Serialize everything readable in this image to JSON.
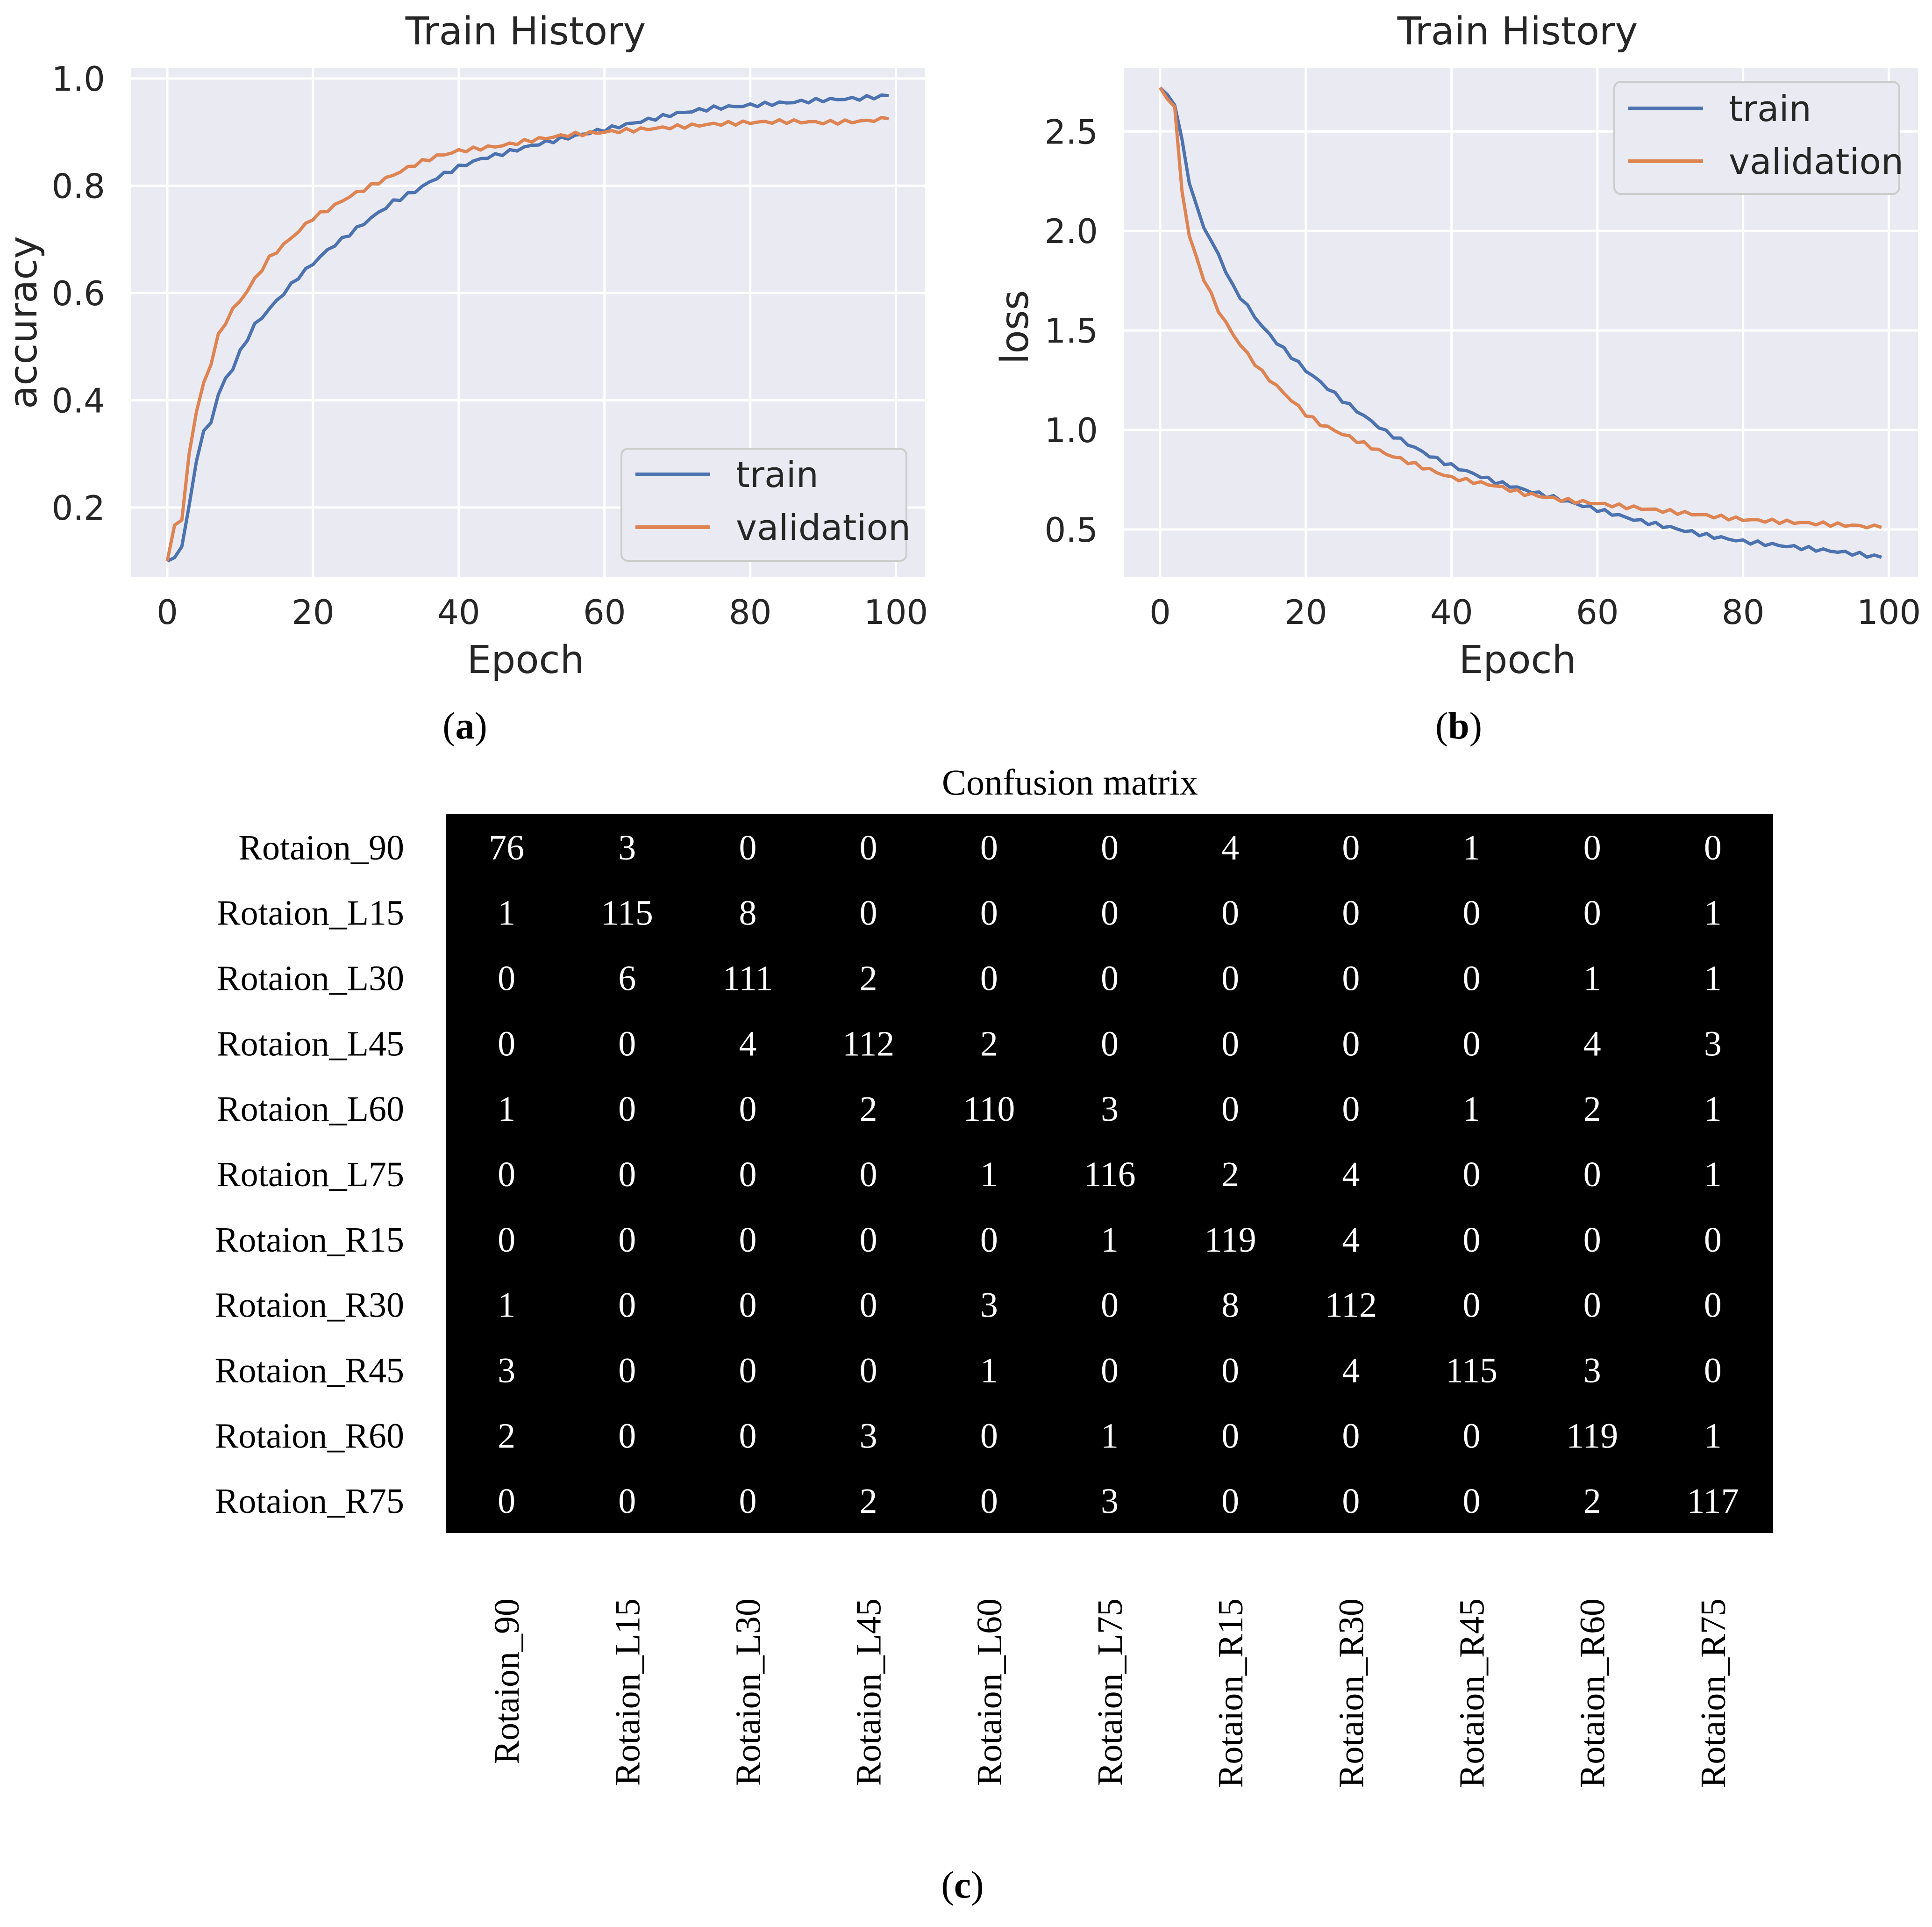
{
  "colors": {
    "plot_bg": "#EAEAF2",
    "grid": "#FFFFFF",
    "train": "#4C72B0",
    "validation": "#DD8452",
    "matrix_bg": "#000000",
    "matrix_text": "#FFFFFF"
  },
  "chart_data": [
    {
      "type": "line",
      "panel_label": "a",
      "title": "Train History",
      "xlabel": "Epoch",
      "ylabel": "accuracy",
      "xlim": [
        -5,
        104
      ],
      "ylim": [
        0.07,
        1.02
      ],
      "xticks": [
        0,
        20,
        40,
        60,
        80,
        100
      ],
      "yticks": [
        0.2,
        0.4,
        0.6,
        0.8,
        1.0
      ],
      "ytick_labels": [
        "0.2",
        "0.4",
        "0.6",
        "0.8",
        "1.0"
      ],
      "grid": true,
      "legend_position": "lower-right",
      "x_keypoints": [
        0,
        1,
        2,
        3,
        4,
        5,
        6,
        7,
        8,
        9,
        10,
        12,
        14,
        16,
        18,
        20,
        22,
        25,
        28,
        31,
        34,
        37,
        40,
        43,
        46,
        50,
        55,
        60,
        65,
        70,
        75,
        80,
        85,
        90,
        95,
        99
      ],
      "series": [
        {
          "name": "train",
          "values": [
            0.1,
            0.105,
            0.13,
            0.2,
            0.29,
            0.34,
            0.36,
            0.41,
            0.44,
            0.46,
            0.49,
            0.54,
            0.57,
            0.6,
            0.63,
            0.655,
            0.68,
            0.71,
            0.74,
            0.77,
            0.79,
            0.815,
            0.835,
            0.85,
            0.86,
            0.875,
            0.89,
            0.905,
            0.92,
            0.935,
            0.945,
            0.95,
            0.955,
            0.96,
            0.963,
            0.968
          ]
        },
        {
          "name": "validation",
          "values": [
            0.1,
            0.17,
            0.175,
            0.3,
            0.38,
            0.43,
            0.47,
            0.52,
            0.545,
            0.57,
            0.585,
            0.625,
            0.665,
            0.69,
            0.715,
            0.74,
            0.755,
            0.78,
            0.8,
            0.82,
            0.84,
            0.855,
            0.865,
            0.87,
            0.875,
            0.885,
            0.895,
            0.9,
            0.905,
            0.91,
            0.915,
            0.918,
            0.92,
            0.918,
            0.92,
            0.925
          ]
        }
      ]
    },
    {
      "type": "line",
      "panel_label": "b",
      "title": "Train History",
      "xlabel": "Epoch",
      "ylabel": "loss",
      "xlim": [
        -5,
        104
      ],
      "ylim": [
        0.26,
        2.82
      ],
      "xticks": [
        0,
        20,
        40,
        60,
        80,
        100
      ],
      "yticks": [
        0.5,
        1.0,
        1.5,
        2.0,
        2.5
      ],
      "ytick_labels": [
        "0.5",
        "1.0",
        "1.5",
        "2.0",
        "2.5"
      ],
      "grid": true,
      "legend_position": "upper-right",
      "x_keypoints": [
        0,
        1,
        2,
        3,
        4,
        5,
        6,
        8,
        10,
        12,
        14,
        16,
        18,
        20,
        22,
        25,
        28,
        31,
        34,
        37,
        40,
        43,
        46,
        50,
        55,
        60,
        65,
        70,
        75,
        80,
        85,
        90,
        95,
        99
      ],
      "series": [
        {
          "name": "train",
          "values": [
            2.72,
            2.68,
            2.64,
            2.45,
            2.25,
            2.12,
            2.02,
            1.88,
            1.72,
            1.62,
            1.52,
            1.44,
            1.37,
            1.3,
            1.24,
            1.15,
            1.07,
            0.99,
            0.93,
            0.87,
            0.82,
            0.78,
            0.74,
            0.7,
            0.65,
            0.6,
            0.55,
            0.51,
            0.47,
            0.44,
            0.42,
            0.4,
            0.38,
            0.36
          ]
        },
        {
          "name": "validation",
          "values": [
            2.72,
            2.67,
            2.62,
            2.2,
            1.98,
            1.86,
            1.76,
            1.6,
            1.48,
            1.38,
            1.29,
            1.22,
            1.15,
            1.08,
            1.03,
            0.98,
            0.93,
            0.88,
            0.84,
            0.8,
            0.76,
            0.74,
            0.72,
            0.68,
            0.65,
            0.63,
            0.61,
            0.59,
            0.57,
            0.55,
            0.54,
            0.53,
            0.52,
            0.51
          ]
        }
      ]
    },
    {
      "type": "heatmap",
      "panel_label": "c",
      "title": "Confusion matrix",
      "row_labels": [
        "Rotaion_90",
        "Rotaion_L15",
        "Rotaion_L30",
        "Rotaion_L45",
        "Rotaion_L60",
        "Rotaion_L75",
        "Rotaion_R15",
        "Rotaion_R30",
        "Rotaion_R45",
        "Rotaion_R60",
        "Rotaion_R75"
      ],
      "column_labels": [
        "Rotaion_90",
        "Rotaion_L15",
        "Rotaion_L30",
        "Rotaion_L45",
        "Rotaion_L60",
        "Rotaion_L75",
        "Rotaion_R15",
        "Rotaion_R30",
        "Rotaion_R45",
        "Rotaion_R60",
        "Rotaion_R75"
      ],
      "matrix": [
        [
          76,
          3,
          0,
          0,
          0,
          0,
          4,
          0,
          1,
          0,
          0
        ],
        [
          1,
          115,
          8,
          0,
          0,
          0,
          0,
          0,
          0,
          0,
          1
        ],
        [
          0,
          6,
          111,
          2,
          0,
          0,
          0,
          0,
          0,
          1,
          1
        ],
        [
          0,
          0,
          4,
          112,
          2,
          0,
          0,
          0,
          0,
          4,
          3
        ],
        [
          1,
          0,
          0,
          2,
          110,
          3,
          0,
          0,
          1,
          2,
          1
        ],
        [
          0,
          0,
          0,
          0,
          1,
          116,
          2,
          4,
          0,
          0,
          1
        ],
        [
          0,
          0,
          0,
          0,
          0,
          1,
          119,
          4,
          0,
          0,
          0
        ],
        [
          1,
          0,
          0,
          0,
          3,
          0,
          8,
          112,
          0,
          0,
          0
        ],
        [
          3,
          0,
          0,
          0,
          1,
          0,
          0,
          4,
          115,
          3,
          0
        ],
        [
          2,
          0,
          0,
          3,
          0,
          1,
          0,
          0,
          0,
          119,
          1
        ],
        [
          0,
          0,
          0,
          2,
          0,
          3,
          0,
          0,
          0,
          2,
          117
        ]
      ]
    }
  ]
}
